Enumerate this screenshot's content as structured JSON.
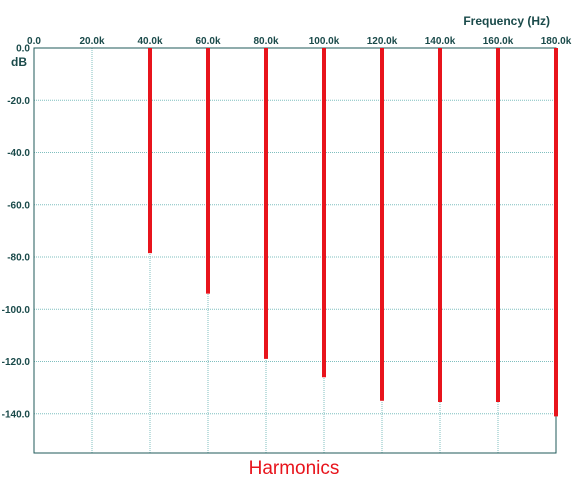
{
  "chart_data": {
    "type": "bar",
    "title": "Harmonics",
    "xlabel": "Frequency  (Hz)",
    "ylabel": "dB",
    "xlim": [
      0,
      180000
    ],
    "ylim": [
      -155,
      0
    ],
    "x_ticks": [
      "0.0",
      "20.0k",
      "40.0k",
      "60.0k",
      "80.0k",
      "100.0k",
      "120.0k",
      "140.0k",
      "160.0k",
      "180.0k"
    ],
    "y_ticks": [
      "0.0",
      "-20.0",
      "-40.0",
      "-60.0",
      "-80.0",
      "-100.0",
      "-120.0",
      "-140.0"
    ],
    "grid": true,
    "x_axis_position": "top",
    "series": [
      {
        "color": "#e8141c",
        "x": [
          40000,
          60000,
          80000,
          100000,
          120000,
          140000,
          160000,
          180000
        ],
        "values": [
          -78.5,
          -94,
          -119,
          -126,
          -135,
          -135.5,
          -135.5,
          -141
        ]
      }
    ],
    "colors": {
      "grid": "#7fbfbf",
      "axes": "#1f5a5a",
      "text": "#1a4a4a",
      "bars": "#e8141c",
      "title": "#e8141c"
    }
  }
}
